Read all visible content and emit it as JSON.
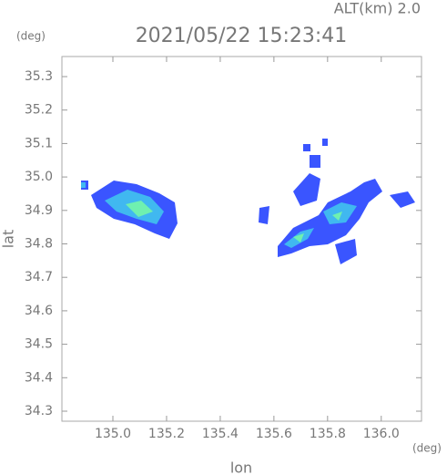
{
  "chart_data": {
    "type": "map",
    "title": "2021/05/22 15:23:41",
    "subtitle": "ALT(km) 2.0",
    "x_label": "lon",
    "y_label": "lat",
    "x_unit": "(deg)",
    "y_unit": "(deg)",
    "xlim": [
      134.81,
      136.15
    ],
    "ylim": [
      34.27,
      35.36
    ],
    "xticks": [
      {
        "value": 135,
        "label": "135.0"
      },
      135.2,
      135.4,
      135.6,
      135.8,
      {
        "value": 136,
        "label": "136.0"
      }
    ],
    "yticks": [
      34.3,
      34.4,
      34.5,
      34.6,
      34.7,
      34.8,
      34.9,
      {
        "value": 35,
        "label": "35.0"
      },
      35.1,
      35.2,
      35.3
    ]
  }
}
